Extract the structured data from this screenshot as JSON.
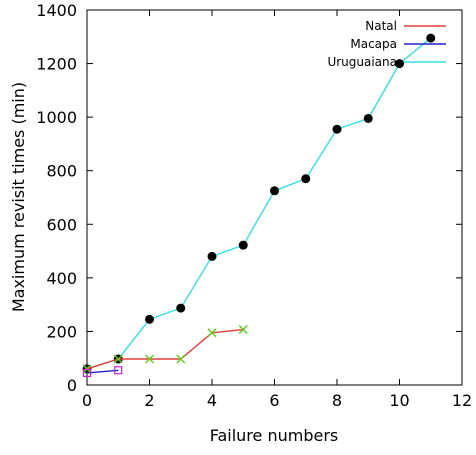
{
  "chart_data": {
    "type": "line",
    "xlabel": "Failure numbers",
    "ylabel": "Maximum revisit times (min)",
    "xlim": [
      0,
      12
    ],
    "ylim": [
      0,
      1400
    ],
    "x_ticks": [
      0,
      2,
      4,
      6,
      8,
      10,
      12
    ],
    "y_ticks": [
      0,
      200,
      400,
      600,
      800,
      1000,
      1200,
      1400
    ],
    "grid": false,
    "legend_position": "top-right",
    "series": [
      {
        "name": "Natal",
        "line_color": "#e0403a",
        "marker": "x",
        "marker_color": "#66cc22",
        "x": [
          0,
          1,
          2,
          3,
          4,
          5
        ],
        "y": [
          60,
          97,
          97,
          97,
          195,
          207
        ]
      },
      {
        "name": "Macapa",
        "line_color": "#2222cc",
        "marker": "square",
        "marker_color": "#cc22cc",
        "x": [
          0,
          1
        ],
        "y": [
          45,
          55
        ]
      },
      {
        "name": "Uruguaiana",
        "line_color": "#33e0e8",
        "marker": "circle",
        "marker_color": "#000000",
        "x": [
          0,
          1,
          2,
          3,
          4,
          5,
          6,
          7,
          8,
          9,
          10,
          11
        ],
        "y": [
          60,
          97,
          245,
          287,
          480,
          522,
          725,
          770,
          955,
          995,
          1200,
          1295
        ]
      }
    ]
  }
}
